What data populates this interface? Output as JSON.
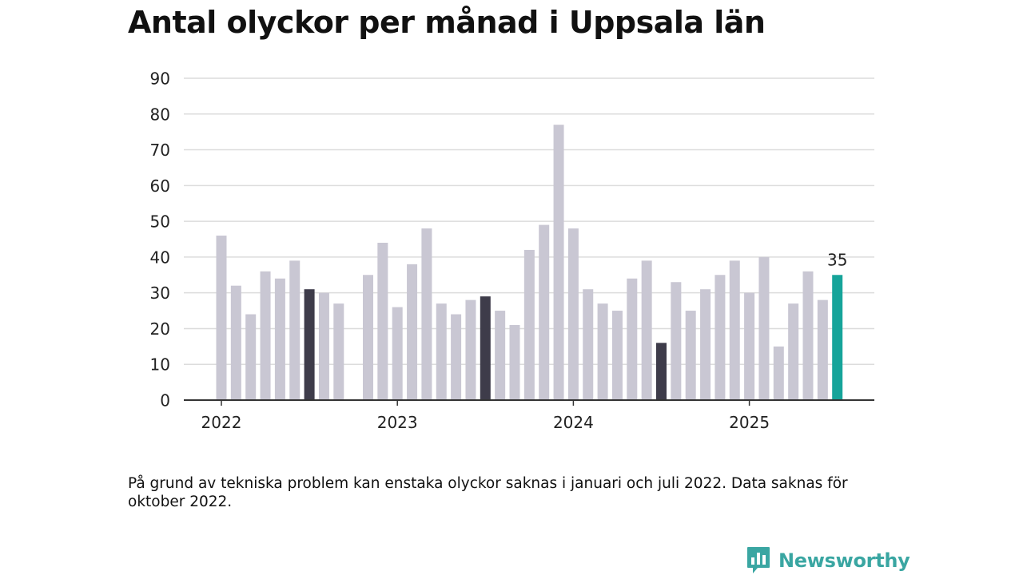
{
  "title": "Antal olyckor per månad i Uppsala län",
  "note": "På grund av tekniska problem kan enstaka olyckor saknas i januari och juli 2022. Data saknas för oktober 2022.",
  "logo": {
    "text": "Newsworthy",
    "icon": "newsworthy-bar-chart-icon"
  },
  "colors": {
    "bar": "#c9c7d3",
    "highlight": "#3e3c4a",
    "latest": "#16a49a",
    "grid": "#dcdcdc",
    "axis": "#333333",
    "logo": "#3aa6a2"
  },
  "chart_data": {
    "type": "bar",
    "title": "Antal olyckor per månad i Uppsala län",
    "xlabel": "",
    "ylabel": "",
    "ylim": [
      0,
      90
    ],
    "yticks": [
      0,
      10,
      20,
      30,
      40,
      50,
      60,
      70,
      80,
      90
    ],
    "xtick_labels": [
      "2022",
      "2023",
      "2024",
      "2025"
    ],
    "grid": true,
    "categories": [
      "2022-01",
      "2022-02",
      "2022-03",
      "2022-04",
      "2022-05",
      "2022-06",
      "2022-07",
      "2022-08",
      "2022-09",
      "2022-10",
      "2022-11",
      "2022-12",
      "2023-01",
      "2023-02",
      "2023-03",
      "2023-04",
      "2023-05",
      "2023-06",
      "2023-07",
      "2023-08",
      "2023-09",
      "2023-10",
      "2023-11",
      "2023-12",
      "2024-01",
      "2024-02",
      "2024-03",
      "2024-04",
      "2024-05",
      "2024-06",
      "2024-07",
      "2024-08",
      "2024-09",
      "2024-10",
      "2024-11",
      "2024-12",
      "2025-01",
      "2025-02",
      "2025-03",
      "2025-04",
      "2025-05",
      "2025-06",
      "2025-07"
    ],
    "values": [
      46,
      32,
      24,
      36,
      34,
      39,
      31,
      30,
      27,
      null,
      35,
      44,
      26,
      38,
      48,
      27,
      24,
      28,
      29,
      25,
      21,
      42,
      49,
      77,
      48,
      31,
      27,
      25,
      34,
      39,
      16,
      33,
      25,
      31,
      35,
      39,
      30,
      40,
      15,
      27,
      36,
      28,
      35
    ],
    "highlighted": [
      "2022-07",
      "2023-07",
      "2024-07"
    ],
    "latest": "2025-07",
    "latest_label": "35"
  }
}
